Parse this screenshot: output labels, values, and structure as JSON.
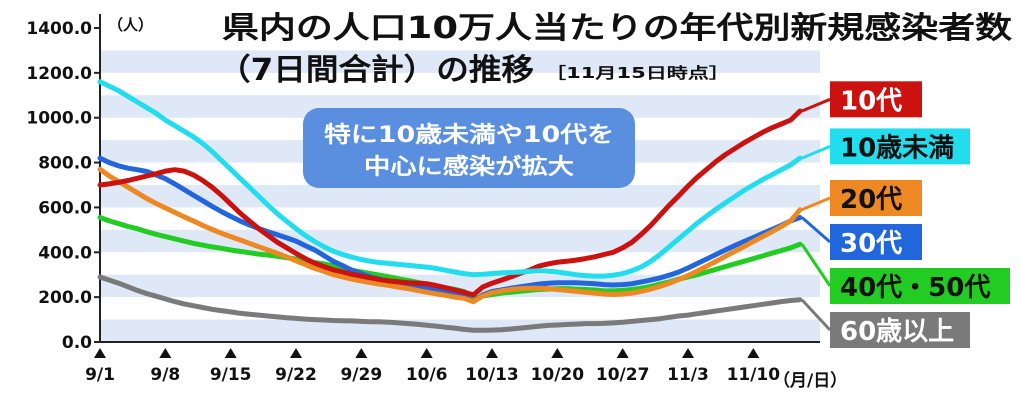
{
  "chart_data": {
    "type": "line",
    "title_line1": "県内の人口10万人当たりの年代別新規感染者数",
    "title_line2": "（7日間合計）の推移",
    "as_of": "［11月15日時点］",
    "ylabel": "（人）",
    "xlabel": "（月/日）",
    "annotation": [
      "特に10歳未満や10代を",
      "中心に感染が拡大"
    ],
    "ylim": [
      0,
      1400
    ],
    "yticks": [
      0,
      200,
      400,
      600,
      800,
      1000,
      1200,
      1400
    ],
    "ytick_labels": [
      "0.0",
      "200.0",
      "400.0",
      "600.0",
      "800.0",
      "1000.0",
      "1200.0",
      "1400.0"
    ],
    "x_start": "9/1",
    "x_end": "11/15",
    "xticks": [
      "9/1",
      "9/8",
      "9/15",
      "9/22",
      "9/29",
      "10/6",
      "10/13",
      "10/20",
      "10/27",
      "11/3",
      "11/10"
    ],
    "grid": "horizontal bands",
    "legend": "right",
    "series": [
      {
        "name": "60歳以上",
        "color": "#7a7a7a",
        "values": [
          290,
          276,
          262,
          246,
          230,
          216,
          204,
          192,
          180,
          170,
          162,
          154,
          146,
          140,
          134,
          128,
          124,
          120,
          116,
          112,
          108,
          105,
          102,
          100,
          98,
          96,
          95,
          94,
          92,
          90,
          90,
          88,
          85,
          82,
          79,
          75,
          71,
          66,
          62,
          56,
          52,
          52,
          53,
          55,
          58,
          62,
          66,
          70,
          74,
          76,
          78,
          80,
          82,
          82,
          83,
          85,
          88,
          92,
          96,
          100,
          104,
          110,
          116,
          120,
          126,
          132,
          138,
          144,
          150,
          156,
          162,
          168,
          174,
          180,
          185,
          188
        ]
      },
      {
        "name": "40代・50代",
        "color": "#22cc22",
        "values": [
          555,
          540,
          528,
          515,
          505,
          492,
          480,
          470,
          460,
          450,
          440,
          432,
          424,
          418,
          410,
          404,
          398,
          392,
          388,
          382,
          376,
          370,
          362,
          354,
          348,
          340,
          330,
          320,
          312,
          305,
          298,
          290,
          282,
          274,
          266,
          258,
          250,
          242,
          235,
          225,
          190,
          205,
          212,
          218,
          222,
          226,
          230,
          234,
          236,
          238,
          238,
          236,
          234,
          232,
          228,
          228,
          230,
          234,
          240,
          248,
          258,
          268,
          280,
          290,
          300,
          312,
          324,
          336,
          348,
          360,
          372,
          384,
          396,
          408,
          420,
          436
        ]
      },
      {
        "name": "30代",
        "color": "#2266dd",
        "values": [
          820,
          800,
          785,
          775,
          768,
          760,
          745,
          728,
          705,
          680,
          655,
          630,
          605,
          582,
          560,
          540,
          522,
          506,
          492,
          478,
          464,
          450,
          430,
          410,
          385,
          360,
          340,
          320,
          305,
          290,
          280,
          270,
          262,
          255,
          248,
          240,
          232,
          225,
          215,
          205,
          180,
          210,
          225,
          232,
          240,
          246,
          252,
          258,
          262,
          264,
          264,
          264,
          262,
          260,
          256,
          254,
          256,
          260,
          268,
          276,
          286,
          298,
          312,
          330,
          350,
          370,
          390,
          410,
          430,
          448,
          466,
          484,
          502,
          520,
          540,
          555
        ]
      },
      {
        "name": "20代",
        "color": "#ee8822",
        "values": [
          770,
          740,
          715,
          690,
          665,
          640,
          618,
          598,
          578,
          558,
          540,
          520,
          502,
          485,
          470,
          455,
          440,
          425,
          410,
          395,
          380,
          362,
          345,
          328,
          315,
          300,
          290,
          280,
          272,
          265,
          258,
          252,
          245,
          238,
          230,
          222,
          215,
          208,
          200,
          195,
          180,
          205,
          220,
          228,
          234,
          238,
          240,
          240,
          238,
          234,
          230,
          226,
          222,
          218,
          214,
          212,
          214,
          218,
          226,
          236,
          248,
          262,
          278,
          296,
          316,
          338,
          360,
          382,
          404,
          426,
          448,
          470,
          492,
          515,
          540,
          590
        ]
      },
      {
        "name": "10代",
        "color": "#cc1111",
        "values": [
          700,
          705,
          712,
          720,
          730,
          740,
          750,
          762,
          768,
          762,
          745,
          720,
          690,
          655,
          615,
          575,
          540,
          505,
          475,
          445,
          420,
          395,
          372,
          352,
          336,
          322,
          312,
          302,
          294,
          286,
          278,
          272,
          268,
          264,
          262,
          260,
          252,
          242,
          232,
          222,
          210,
          245,
          262,
          276,
          290,
          306,
          320,
          338,
          348,
          356,
          360,
          365,
          372,
          380,
          390,
          400,
          420,
          445,
          480,
          520,
          565,
          610,
          652,
          695,
          735,
          770,
          805,
          835,
          862,
          888,
          912,
          935,
          955,
          972,
          990,
          1030
        ]
      },
      {
        "name": "10歳未満",
        "color": "#22ddee",
        "values": [
          1160,
          1140,
          1120,
          1095,
          1070,
          1045,
          1020,
          990,
          965,
          940,
          915,
          885,
          850,
          810,
          770,
          730,
          690,
          650,
          610,
          572,
          538,
          505,
          475,
          448,
          425,
          405,
          390,
          378,
          368,
          360,
          354,
          350,
          346,
          342,
          338,
          334,
          328,
          320,
          312,
          305,
          300,
          302,
          305,
          308,
          310,
          312,
          315,
          318,
          316,
          312,
          306,
          300,
          296,
          294,
          294,
          298,
          305,
          318,
          335,
          360,
          390,
          425,
          460,
          495,
          530,
          562,
          592,
          620,
          648,
          676,
          700,
          724,
          746,
          768,
          790,
          820
        ]
      }
    ]
  }
}
